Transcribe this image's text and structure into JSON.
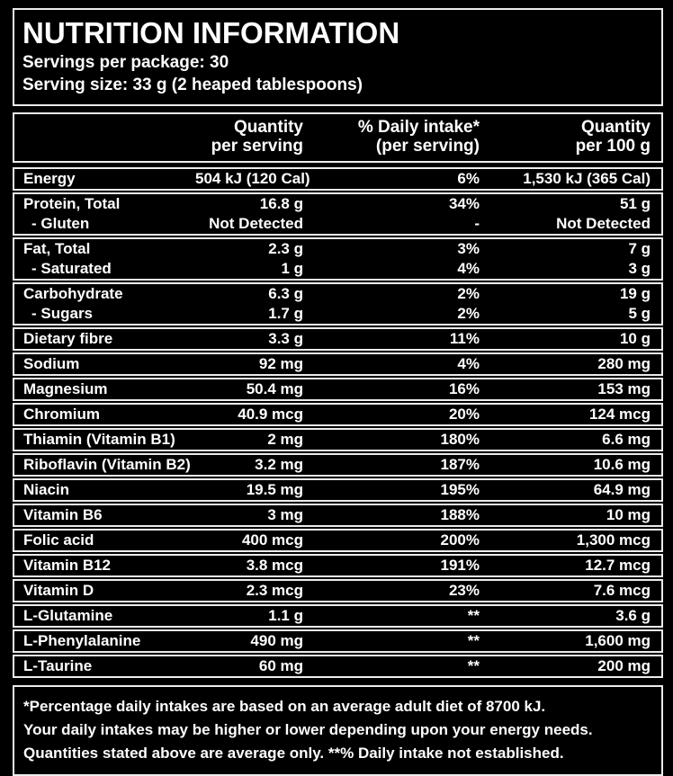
{
  "header": {
    "title": "NUTRITION INFORMATION",
    "servings_per_package": "Servings per package: 30",
    "serving_size": "Serving size: 33 g (2 heaped tablespoons)"
  },
  "columns": {
    "per_serving_line1": "Quantity",
    "per_serving_line2": "per serving",
    "daily_intake_line1": "% Daily intake*",
    "daily_intake_line2": "(per serving)",
    "per_100g_line1": "Quantity",
    "per_100g_line2": "per 100 g"
  },
  "groups": [
    {
      "rows": [
        {
          "name": "Energy",
          "per_serving": "504 kJ (120 Cal)",
          "daily_intake": "6%",
          "per_100g": "1,530 kJ (365 Cal)",
          "indent": false
        }
      ]
    },
    {
      "rows": [
        {
          "name": "Protein, Total",
          "per_serving": "16.8 g",
          "daily_intake": "34%",
          "per_100g": "51 g",
          "indent": false
        },
        {
          "name": "- Gluten",
          "per_serving": "Not Detected",
          "daily_intake": "-",
          "per_100g": "Not Detected",
          "indent": true
        }
      ]
    },
    {
      "rows": [
        {
          "name": "Fat, Total",
          "per_serving": "2.3 g",
          "daily_intake": "3%",
          "per_100g": "7 g",
          "indent": false
        },
        {
          "name": "- Saturated",
          "per_serving": "1 g",
          "daily_intake": "4%",
          "per_100g": "3 g",
          "indent": true
        }
      ]
    },
    {
      "rows": [
        {
          "name": "Carbohydrate",
          "per_serving": "6.3 g",
          "daily_intake": "2%",
          "per_100g": "19 g",
          "indent": false
        },
        {
          "name": "- Sugars",
          "per_serving": "1.7 g",
          "daily_intake": "2%",
          "per_100g": "5 g",
          "indent": true
        }
      ]
    },
    {
      "rows": [
        {
          "name": "Dietary fibre",
          "per_serving": "3.3 g",
          "daily_intake": "11%",
          "per_100g": "10 g",
          "indent": false
        }
      ]
    },
    {
      "rows": [
        {
          "name": "Sodium",
          "per_serving": "92 mg",
          "daily_intake": "4%",
          "per_100g": "280 mg",
          "indent": false
        }
      ]
    },
    {
      "rows": [
        {
          "name": "Magnesium",
          "per_serving": "50.4 mg",
          "daily_intake": "16%",
          "per_100g": "153 mg",
          "indent": false
        }
      ]
    },
    {
      "rows": [
        {
          "name": "Chromium",
          "per_serving": "40.9 mcg",
          "daily_intake": "20%",
          "per_100g": "124 mcg",
          "indent": false
        }
      ]
    },
    {
      "rows": [
        {
          "name": "Thiamin (Vitamin B1)",
          "per_serving": "2 mg",
          "daily_intake": "180%",
          "per_100g": "6.6 mg",
          "indent": false
        }
      ]
    },
    {
      "rows": [
        {
          "name": "Riboflavin (Vitamin B2)",
          "per_serving": "3.2 mg",
          "daily_intake": "187%",
          "per_100g": "10.6 mg",
          "indent": false
        }
      ]
    },
    {
      "rows": [
        {
          "name": "Niacin",
          "per_serving": "19.5 mg",
          "daily_intake": "195%",
          "per_100g": "64.9 mg",
          "indent": false
        }
      ]
    },
    {
      "rows": [
        {
          "name": "Vitamin B6",
          "per_serving": "3 mg",
          "daily_intake": "188%",
          "per_100g": "10 mg",
          "indent": false
        }
      ]
    },
    {
      "rows": [
        {
          "name": "Folic acid",
          "per_serving": "400 mcg",
          "daily_intake": "200%",
          "per_100g": "1,300 mcg",
          "indent": false
        }
      ]
    },
    {
      "rows": [
        {
          "name": "Vitamin B12",
          "per_serving": "3.8 mcg",
          "daily_intake": "191%",
          "per_100g": "12.7 mcg",
          "indent": false
        }
      ]
    },
    {
      "rows": [
        {
          "name": "Vitamin D",
          "per_serving": "2.3 mcg",
          "daily_intake": "23%",
          "per_100g": "7.6 mcg",
          "indent": false
        }
      ]
    },
    {
      "rows": [
        {
          "name": "L-Glutamine",
          "per_serving": "1.1 g",
          "daily_intake": "**",
          "per_100g": "3.6 g",
          "indent": false
        }
      ]
    },
    {
      "rows": [
        {
          "name": "L-Phenylalanine",
          "per_serving": "490 mg",
          "daily_intake": "**",
          "per_100g": "1,600 mg",
          "indent": false
        }
      ]
    },
    {
      "rows": [
        {
          "name": "L-Taurine",
          "per_serving": "60 mg",
          "daily_intake": "**",
          "per_100g": "200 mg",
          "indent": false
        }
      ]
    }
  ],
  "footnotes": [
    "*Percentage daily intakes are based on an average adult diet of 8700 kJ.",
    "Your daily intakes may be higher or lower depending upon your energy needs.",
    "Quantities stated above are average only. **% Daily intake not established."
  ],
  "colors": {
    "background": "#000000",
    "text": "#ffffff",
    "border": "#ececec"
  }
}
